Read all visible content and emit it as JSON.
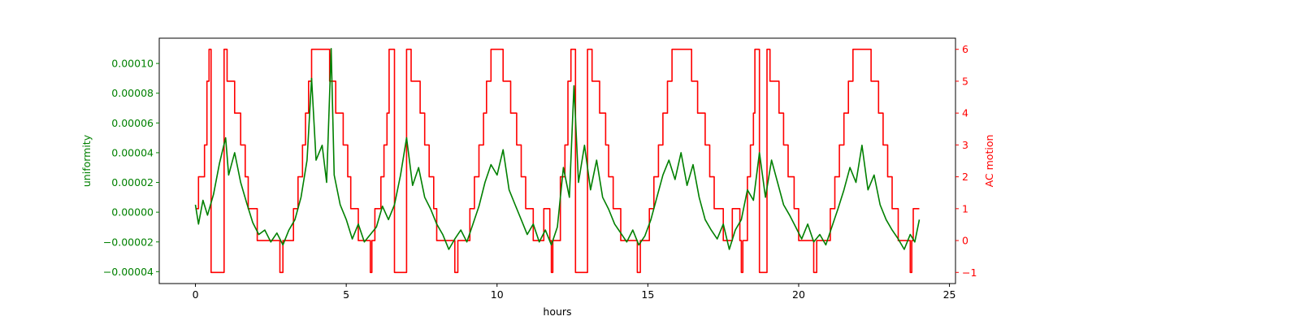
{
  "chart_data": {
    "type": "line",
    "title": "",
    "xlabel": "hours",
    "xlim": [
      -1.2,
      25.2
    ],
    "x_ticks": [
      0,
      5,
      10,
      15,
      20,
      25
    ],
    "x_tick_labels": [
      "0",
      "5",
      "10",
      "15",
      "20",
      "25"
    ],
    "grid": false,
    "legend": "none",
    "y_left": {
      "label": "uniformity",
      "color": "#008000",
      "ylim": [
        -4.8e-05,
        0.000117
      ],
      "ticks": [
        -4e-05,
        -2e-05,
        0,
        2e-05,
        4e-05,
        6e-05,
        8e-05,
        0.0001
      ],
      "tick_labels": [
        "−0.00004",
        "−0.00002",
        "0.00000",
        "0.00002",
        "0.00004",
        "0.00006",
        "0.00008",
        "0.00010"
      ]
    },
    "y_right": {
      "label": "AC motion",
      "color": "#ff0000",
      "ylim": [
        -1.35,
        6.35
      ],
      "ticks": [
        -1,
        0,
        1,
        2,
        3,
        4,
        5,
        6
      ],
      "tick_labels": [
        "−1",
        "0",
        "1",
        "2",
        "3",
        "4",
        "5",
        "6"
      ]
    },
    "series": [
      {
        "axis": "right",
        "color": "#ff0000",
        "step": true,
        "points": [
          [
            0,
            1
          ],
          [
            0.1,
            2
          ],
          [
            0.3,
            3
          ],
          [
            0.38,
            5
          ],
          [
            0.45,
            6
          ],
          [
            0.52,
            -1
          ],
          [
            0.95,
            6
          ],
          [
            1.05,
            5
          ],
          [
            1.3,
            4
          ],
          [
            1.5,
            3
          ],
          [
            1.65,
            2
          ],
          [
            1.75,
            1
          ],
          [
            2.05,
            0
          ],
          [
            2.8,
            -1
          ],
          [
            2.9,
            0
          ],
          [
            3.25,
            1
          ],
          [
            3.4,
            2
          ],
          [
            3.55,
            3
          ],
          [
            3.65,
            4
          ],
          [
            3.75,
            5
          ],
          [
            3.85,
            6
          ],
          [
            4.45,
            5
          ],
          [
            4.65,
            4
          ],
          [
            4.9,
            3
          ],
          [
            5.05,
            2
          ],
          [
            5.15,
            1
          ],
          [
            5.4,
            0
          ],
          [
            5.8,
            -1
          ],
          [
            5.85,
            0
          ],
          [
            5.95,
            1
          ],
          [
            6.15,
            2
          ],
          [
            6.25,
            3
          ],
          [
            6.35,
            4
          ],
          [
            6.42,
            6
          ],
          [
            6.6,
            -1
          ],
          [
            7.0,
            6
          ],
          [
            7.15,
            5
          ],
          [
            7.45,
            4
          ],
          [
            7.6,
            3
          ],
          [
            7.75,
            2
          ],
          [
            7.9,
            1
          ],
          [
            8.0,
            0
          ],
          [
            8.6,
            -1
          ],
          [
            8.7,
            0
          ],
          [
            9.1,
            1
          ],
          [
            9.25,
            2
          ],
          [
            9.4,
            3
          ],
          [
            9.55,
            4
          ],
          [
            9.65,
            5
          ],
          [
            9.8,
            6
          ],
          [
            10.2,
            5
          ],
          [
            10.45,
            4
          ],
          [
            10.65,
            3
          ],
          [
            10.8,
            2
          ],
          [
            10.95,
            1
          ],
          [
            11.2,
            0
          ],
          [
            11.55,
            1
          ],
          [
            11.75,
            0
          ],
          [
            11.8,
            -1
          ],
          [
            11.85,
            0
          ],
          [
            12.1,
            2
          ],
          [
            12.25,
            3
          ],
          [
            12.35,
            5
          ],
          [
            12.45,
            6
          ],
          [
            12.6,
            -1
          ],
          [
            13.0,
            6
          ],
          [
            13.15,
            5
          ],
          [
            13.4,
            4
          ],
          [
            13.6,
            3
          ],
          [
            13.7,
            2
          ],
          [
            13.85,
            1
          ],
          [
            14.1,
            0
          ],
          [
            14.65,
            -1
          ],
          [
            14.75,
            0
          ],
          [
            15.05,
            1
          ],
          [
            15.2,
            2
          ],
          [
            15.35,
            3
          ],
          [
            15.5,
            4
          ],
          [
            15.65,
            5
          ],
          [
            15.8,
            6
          ],
          [
            16.45,
            5
          ],
          [
            16.65,
            4
          ],
          [
            16.9,
            3
          ],
          [
            17.05,
            2
          ],
          [
            17.2,
            1
          ],
          [
            17.5,
            0
          ],
          [
            17.8,
            1
          ],
          [
            18.05,
            0
          ],
          [
            18.1,
            -1
          ],
          [
            18.15,
            0
          ],
          [
            18.3,
            2
          ],
          [
            18.4,
            3
          ],
          [
            18.5,
            4
          ],
          [
            18.55,
            6
          ],
          [
            18.7,
            -1
          ],
          [
            18.95,
            6
          ],
          [
            19.05,
            5
          ],
          [
            19.35,
            4
          ],
          [
            19.5,
            3
          ],
          [
            19.65,
            2
          ],
          [
            19.85,
            1
          ],
          [
            20.0,
            0
          ],
          [
            20.5,
            -1
          ],
          [
            20.6,
            0
          ],
          [
            21.05,
            1
          ],
          [
            21.2,
            2
          ],
          [
            21.35,
            3
          ],
          [
            21.5,
            4
          ],
          [
            21.65,
            5
          ],
          [
            21.8,
            6
          ],
          [
            22.4,
            5
          ],
          [
            22.65,
            4
          ],
          [
            22.8,
            3
          ],
          [
            22.95,
            2
          ],
          [
            23.1,
            1
          ],
          [
            23.3,
            0
          ],
          [
            23.7,
            -1
          ],
          [
            23.75,
            0
          ],
          [
            23.8,
            1
          ],
          [
            24,
            1
          ]
        ]
      },
      {
        "axis": "left",
        "color": "#008000",
        "step": false,
        "points": [
          [
            0,
            5e-06
          ],
          [
            0.1,
            -8e-06
          ],
          [
            0.25,
            8e-06
          ],
          [
            0.4,
            -2e-06
          ],
          [
            0.6,
            1.2e-05
          ],
          [
            0.8,
            3.3e-05
          ],
          [
            1.0,
            5e-05
          ],
          [
            1.1,
            2.5e-05
          ],
          [
            1.3,
            4e-05
          ],
          [
            1.5,
            2e-05
          ],
          [
            1.7,
            6e-06
          ],
          [
            1.9,
            -7e-06
          ],
          [
            2.1,
            -1.5e-05
          ],
          [
            2.3,
            -1.2e-05
          ],
          [
            2.5,
            -2e-05
          ],
          [
            2.7,
            -1.4e-05
          ],
          [
            2.9,
            -2.2e-05
          ],
          [
            3.1,
            -1.2e-05
          ],
          [
            3.3,
            -5e-06
          ],
          [
            3.5,
            1e-05
          ],
          [
            3.7,
            3.5e-05
          ],
          [
            3.85,
            9e-05
          ],
          [
            4.0,
            3.5e-05
          ],
          [
            4.2,
            4.5e-05
          ],
          [
            4.35,
            2e-05
          ],
          [
            4.5,
            0.00011
          ],
          [
            4.6,
            2.5e-05
          ],
          [
            4.8,
            5e-06
          ],
          [
            5.0,
            -5e-06
          ],
          [
            5.2,
            -1.8e-05
          ],
          [
            5.4,
            -8e-06
          ],
          [
            5.6,
            -2e-05
          ],
          [
            5.8,
            -1.5e-05
          ],
          [
            6.0,
            -1e-05
          ],
          [
            6.2,
            4e-06
          ],
          [
            6.4,
            -5e-06
          ],
          [
            6.6,
            5e-06
          ],
          [
            6.8,
            2.5e-05
          ],
          [
            7.0,
            5e-05
          ],
          [
            7.2,
            1.8e-05
          ],
          [
            7.4,
            3e-05
          ],
          [
            7.6,
            1e-05
          ],
          [
            7.8,
            2e-06
          ],
          [
            8.0,
            -8e-06
          ],
          [
            8.2,
            -1.5e-05
          ],
          [
            8.4,
            -2.5e-05
          ],
          [
            8.6,
            -1.8e-05
          ],
          [
            8.8,
            -1.2e-05
          ],
          [
            9.0,
            -2e-05
          ],
          [
            9.2,
            -8e-06
          ],
          [
            9.4,
            4e-06
          ],
          [
            9.6,
            2e-05
          ],
          [
            9.8,
            3.2e-05
          ],
          [
            10.0,
            2.5e-05
          ],
          [
            10.2,
            4.2e-05
          ],
          [
            10.4,
            1.5e-05
          ],
          [
            10.6,
            5e-06
          ],
          [
            10.8,
            -5e-06
          ],
          [
            11.0,
            -1.5e-05
          ],
          [
            11.2,
            -8e-06
          ],
          [
            11.4,
            -2e-05
          ],
          [
            11.6,
            -1.2e-05
          ],
          [
            11.8,
            -2.2e-05
          ],
          [
            12.0,
            -1e-05
          ],
          [
            12.2,
            3e-05
          ],
          [
            12.4,
            1e-05
          ],
          [
            12.55,
            8.5e-05
          ],
          [
            12.7,
            2e-05
          ],
          [
            12.9,
            4.5e-05
          ],
          [
            13.1,
            1.5e-05
          ],
          [
            13.3,
            3.5e-05
          ],
          [
            13.5,
            1e-05
          ],
          [
            13.7,
            2e-06
          ],
          [
            13.9,
            -8e-06
          ],
          [
            14.1,
            -1.4e-05
          ],
          [
            14.3,
            -2e-05
          ],
          [
            14.5,
            -1.2e-05
          ],
          [
            14.7,
            -2.2e-05
          ],
          [
            14.9,
            -1.6e-05
          ],
          [
            15.1,
            -5e-06
          ],
          [
            15.3,
            1e-05
          ],
          [
            15.5,
            2.5e-05
          ],
          [
            15.7,
            3.5e-05
          ],
          [
            15.9,
            2.2e-05
          ],
          [
            16.1,
            4e-05
          ],
          [
            16.3,
            1.8e-05
          ],
          [
            16.5,
            3.2e-05
          ],
          [
            16.7,
            1e-05
          ],
          [
            16.9,
            -5e-06
          ],
          [
            17.1,
            -1.2e-05
          ],
          [
            17.3,
            -1.8e-05
          ],
          [
            17.5,
            -8e-06
          ],
          [
            17.7,
            -2.5e-05
          ],
          [
            17.9,
            -1.2e-05
          ],
          [
            18.1,
            -5e-06
          ],
          [
            18.3,
            1.5e-05
          ],
          [
            18.5,
            8e-06
          ],
          [
            18.7,
            4e-05
          ],
          [
            18.9,
            1e-05
          ],
          [
            19.1,
            3.5e-05
          ],
          [
            19.3,
            2e-05
          ],
          [
            19.5,
            5e-06
          ],
          [
            19.7,
            -2e-06
          ],
          [
            19.9,
            -1e-05
          ],
          [
            20.1,
            -1.8e-05
          ],
          [
            20.3,
            -8e-06
          ],
          [
            20.5,
            -2e-05
          ],
          [
            20.7,
            -1.5e-05
          ],
          [
            20.9,
            -2.2e-05
          ],
          [
            21.1,
            -1e-05
          ],
          [
            21.3,
            2e-06
          ],
          [
            21.5,
            1.5e-05
          ],
          [
            21.7,
            3e-05
          ],
          [
            21.9,
            2e-05
          ],
          [
            22.1,
            4.5e-05
          ],
          [
            22.3,
            1.5e-05
          ],
          [
            22.5,
            2.5e-05
          ],
          [
            22.7,
            5e-06
          ],
          [
            22.9,
            -5e-06
          ],
          [
            23.1,
            -1.2e-05
          ],
          [
            23.3,
            -1.8e-05
          ],
          [
            23.5,
            -2.5e-05
          ],
          [
            23.7,
            -1.5e-05
          ],
          [
            23.85,
            -2e-05
          ],
          [
            24,
            -5e-06
          ]
        ]
      }
    ]
  }
}
